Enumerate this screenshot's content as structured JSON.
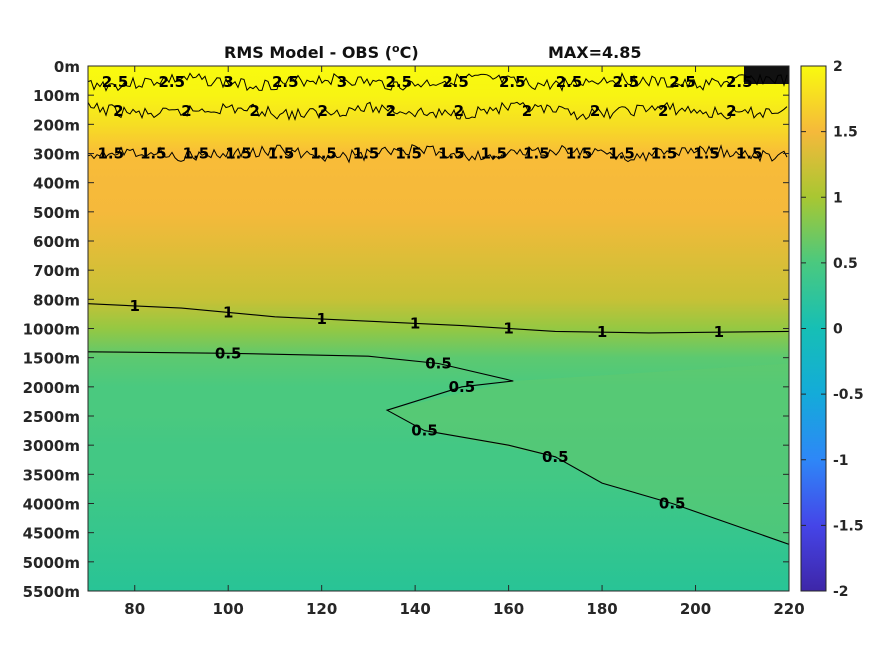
{
  "chart_data": {
    "type": "heatmap",
    "title": "RMS Model - OBS (",
    "title_unit_sup": "o",
    "title_unit_tail": "C)",
    "max_label": "MAX=4.85",
    "xlim": [
      70,
      220
    ],
    "x_ticks": [
      "80",
      "100",
      "120",
      "140",
      "160",
      "180",
      "200",
      "220"
    ],
    "x_tick_values": [
      80,
      100,
      120,
      140,
      160,
      180,
      200,
      220
    ],
    "y_ticks": [
      "0m",
      "100m",
      "200m",
      "300m",
      "400m",
      "500m",
      "600m",
      "700m",
      "800m",
      "1000m",
      "1500m",
      "2000m",
      "2500m",
      "3000m",
      "3500m",
      "4000m",
      "4500m",
      "5000m",
      "5500m"
    ],
    "colorbar": {
      "ticks": [
        "2",
        "1.5",
        "1",
        "0.5",
        "0",
        "-0.5",
        "-1",
        "-1.5",
        "-2"
      ],
      "tick_values": [
        2,
        1.5,
        1,
        0.5,
        0,
        -0.5,
        -1,
        -1.5,
        -2
      ],
      "clim": [
        -2,
        2
      ],
      "colormap": "parula"
    },
    "contours": [
      {
        "level": 2.5,
        "depth_index": 0.55,
        "labels": [
          "2.5",
          "2.5",
          "3",
          "2.5",
          "3",
          "2.5",
          "2.5",
          "2.5",
          "2.5",
          "2.5",
          "2.5",
          "2.5"
        ]
      },
      {
        "level": 2,
        "depth_index": 1.55,
        "labels": [
          "2",
          "2",
          "2",
          "2",
          "2",
          "2",
          "2",
          "2",
          "2",
          "2"
        ]
      },
      {
        "level": 1.5,
        "depth_index": 3.0,
        "labels": [
          "1.5",
          "1.5",
          "1.5",
          "1.5",
          "1.5",
          "1.5",
          "1.5",
          "1.5",
          "1.5",
          "1.5",
          "1.5",
          "1.5",
          "1.5",
          "1.5",
          "1.5",
          "1.5"
        ]
      },
      {
        "level": 1,
        "points": [
          [
            70,
            8.15
          ],
          [
            90,
            8.3
          ],
          [
            110,
            8.6
          ],
          [
            130,
            8.75
          ],
          [
            150,
            8.9
          ],
          [
            170,
            9.1
          ],
          [
            190,
            9.15
          ],
          [
            220,
            9.1
          ]
        ],
        "labels": [
          "1",
          "1",
          "1",
          "1",
          "1",
          "1",
          "1"
        ]
      },
      {
        "level": 0.5,
        "points": [
          [
            70,
            9.8
          ],
          [
            100,
            9.85
          ],
          [
            130,
            9.95
          ],
          [
            145,
            10.2
          ],
          [
            161,
            10.8
          ],
          [
            150,
            11.0
          ],
          [
            134,
            11.8
          ],
          [
            142,
            12.5
          ],
          [
            160,
            13.0
          ],
          [
            170,
            13.4
          ],
          [
            180,
            14.3
          ],
          [
            195,
            15.0
          ],
          [
            220,
            16.4
          ]
        ],
        "labels": [
          "0.5",
          "0.5",
          "0.5",
          "0.5",
          "0.5",
          "0.5"
        ]
      }
    ],
    "field_by_depth": [
      {
        "depth": "0m",
        "value": 2.0
      },
      {
        "depth": "100m",
        "value": 1.95
      },
      {
        "depth": "200m",
        "value": 1.8
      },
      {
        "depth": "300m",
        "value": 1.45
      },
      {
        "depth": "400m",
        "value": 1.3
      },
      {
        "depth": "500m",
        "value": 1.25
      },
      {
        "depth": "600m",
        "value": 1.2
      },
      {
        "depth": "700m",
        "value": 1.15
      },
      {
        "depth": "800m",
        "value": 1.1
      },
      {
        "depth": "1000m",
        "value": 0.9
      },
      {
        "depth": "1500m",
        "value": 0.6
      },
      {
        "depth": "2000m",
        "value": 0.5
      },
      {
        "depth": "2500m",
        "value": 0.5
      },
      {
        "depth": "3000m",
        "value": 0.45
      },
      {
        "depth": "3500m",
        "value": 0.45
      },
      {
        "depth": "4000m",
        "value": 0.4
      },
      {
        "depth": "4500m",
        "value": 0.35
      },
      {
        "depth": "5000m",
        "value": 0.3
      },
      {
        "depth": "5500m",
        "value": 0.25
      }
    ]
  }
}
